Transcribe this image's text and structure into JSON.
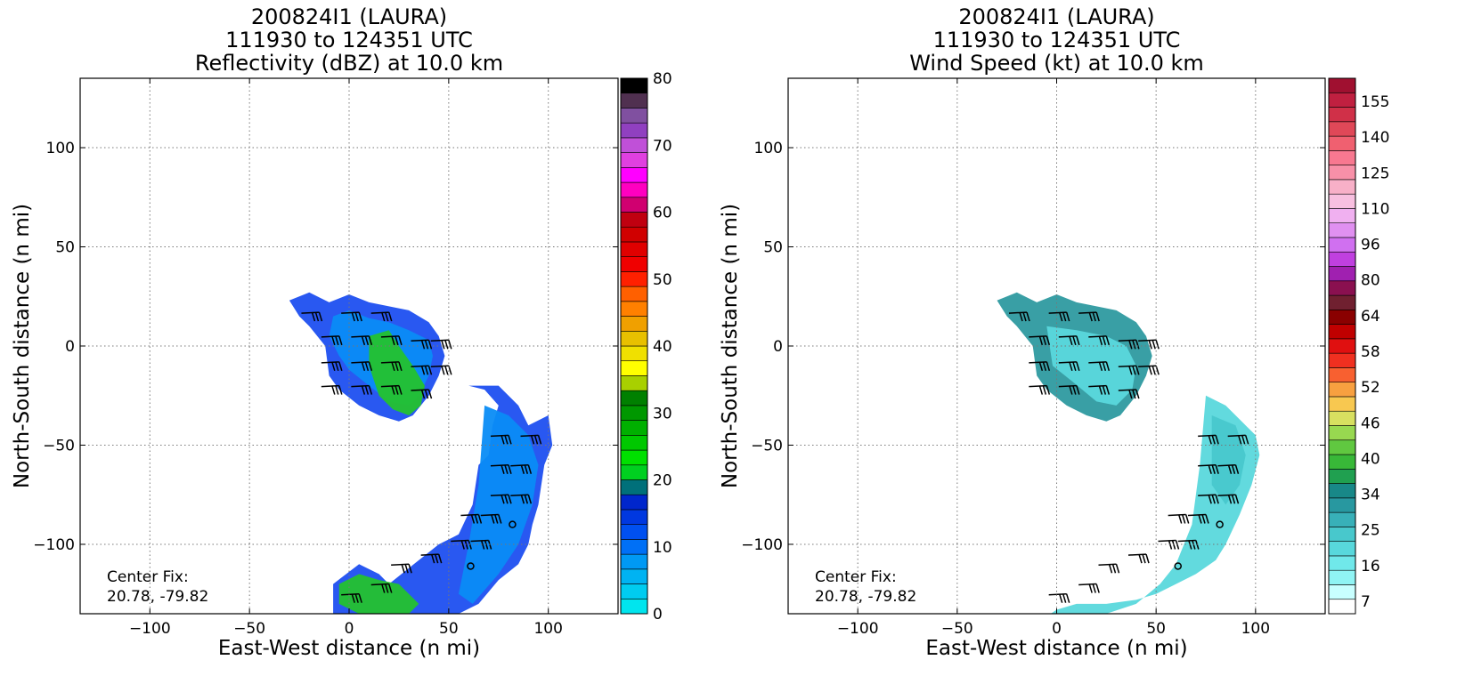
{
  "chart_data": [
    {
      "type": "heatmap",
      "title_lines": [
        "200824I1 (LAURA)",
        "111930 to 124351 UTC",
        "Reflectivity (dBZ) at 10.0 km"
      ],
      "xlabel": "East-West distance (n mi)",
      "ylabel": "North-South distance (n mi)",
      "xlim": [
        -135,
        135
      ],
      "ylim": [
        -135,
        135
      ],
      "xticks": [
        -100,
        -50,
        0,
        50,
        100
      ],
      "xtick_labels": [
        "−100",
        "−50",
        "0",
        "50",
        "100"
      ],
      "yticks": [
        100,
        50,
        0,
        -50,
        -100
      ],
      "ytick_labels": [
        "100",
        "50",
        "0",
        "−50",
        "−100"
      ],
      "grid": true,
      "annotation_lines": [
        "Center Fix:",
        "20.78, -79.82"
      ],
      "colorbar": {
        "ticks": [
          0,
          10,
          20,
          30,
          40,
          50,
          60,
          70,
          80
        ],
        "tick_labels": [
          "0",
          "10",
          "20",
          "30",
          "40",
          "50",
          "60",
          "70",
          "80"
        ],
        "colors": [
          "#00e5ee",
          "#00ccf0",
          "#00b3f2",
          "#0099f4",
          "#0070f6",
          "#0050f0",
          "#0038e0",
          "#0026cc",
          "#00707a",
          "#00d020",
          "#00e000",
          "#00c800",
          "#00b000",
          "#009800",
          "#008000",
          "#a8d000",
          "#ffff00",
          "#f0e000",
          "#e8c000",
          "#f0a000",
          "#ff8000",
          "#ff6000",
          "#ff2000",
          "#f00000",
          "#e00000",
          "#d00000",
          "#c00010",
          "#d00070",
          "#ff00c0",
          "#ff00ff",
          "#e040e0",
          "#c050d8",
          "#9040c0",
          "#8050a0",
          "#503050",
          "#000000"
        ]
      },
      "echo_regions": [
        {
          "x": [
            -30,
            -20,
            -10,
            0,
            10,
            20,
            30,
            40,
            45,
            48,
            45,
            40,
            32,
            25,
            15,
            5,
            -5,
            -10,
            -12,
            -20,
            -25,
            -30
          ],
          "y": [
            23,
            27,
            22,
            26,
            22,
            20,
            18,
            12,
            5,
            -5,
            -15,
            -25,
            -35,
            -38,
            -35,
            -30,
            -22,
            -15,
            0,
            10,
            15,
            23
          ],
          "color": "#1d4ff0"
        },
        {
          "x": [
            -8,
            0,
            10,
            20,
            30,
            40,
            42,
            40,
            35,
            30,
            20,
            10,
            0,
            -5,
            -10,
            -8
          ],
          "y": [
            15,
            18,
            14,
            12,
            8,
            3,
            -5,
            -15,
            -25,
            -30,
            -28,
            -20,
            -12,
            -5,
            5,
            15
          ],
          "color": "#0a8cf5"
        },
        {
          "x": [
            10,
            20,
            25,
            32,
            38,
            36,
            30,
            22,
            15,
            10
          ],
          "y": [
            5,
            8,
            0,
            -10,
            -20,
            -30,
            -35,
            -32,
            -25,
            -10
          ],
          "color": "#24c22e"
        },
        {
          "x": [
            60,
            75,
            85,
            90,
            100,
            102,
            98,
            95,
            92,
            90,
            85,
            75,
            65,
            55,
            40,
            25,
            15,
            0,
            -8,
            -8,
            5,
            15,
            20,
            30,
            45,
            55,
            62,
            65,
            70,
            72,
            75,
            68,
            60
          ],
          "y": [
            -20,
            -20,
            -30,
            -40,
            -35,
            -50,
            -60,
            -80,
            -90,
            -100,
            -110,
            -118,
            -130,
            -135,
            -135,
            -135,
            -135,
            -135,
            -135,
            -120,
            -110,
            -115,
            -120,
            -112,
            -100,
            -95,
            -80,
            -60,
            -55,
            -40,
            -30,
            -22,
            -20
          ],
          "color": "#1d4ff0"
        },
        {
          "x": [
            68,
            80,
            90,
            95,
            92,
            85,
            75,
            62,
            55,
            60,
            65,
            68
          ],
          "y": [
            -30,
            -35,
            -45,
            -60,
            -80,
            -100,
            -115,
            -130,
            -125,
            -100,
            -70,
            -30
          ],
          "color": "#0a8cf5"
        },
        {
          "x": [
            -5,
            5,
            15,
            25,
            35,
            30,
            15,
            5,
            -5
          ],
          "y": [
            -120,
            -115,
            -118,
            -120,
            -130,
            -135,
            -135,
            -135,
            -130
          ],
          "color": "#24c22e"
        }
      ],
      "center_marks": [
        {
          "x": 82,
          "y": -90
        },
        {
          "x": 61,
          "y": -111
        }
      ]
    },
    {
      "type": "heatmap",
      "title_lines": [
        "200824I1 (LAURA)",
        "111930 to 124351 UTC",
        "Wind Speed (kt) at 10.0 km"
      ],
      "xlabel": "East-West distance (n mi)",
      "ylabel": "North-South distance (n mi)",
      "xlim": [
        -135,
        135
      ],
      "ylim": [
        -135,
        135
      ],
      "xticks": [
        -100,
        -50,
        0,
        50,
        100
      ],
      "xtick_labels": [
        "−100",
        "−50",
        "0",
        "50",
        "100"
      ],
      "yticks": [
        100,
        50,
        0,
        -50,
        -100
      ],
      "ytick_labels": [
        "100",
        "50",
        "0",
        "−50",
        "−100"
      ],
      "grid": true,
      "annotation_lines": [
        "Center Fix:",
        "20.78, -79.82"
      ],
      "colorbar": {
        "ticks": [
          7,
          16,
          25,
          34,
          40,
          46,
          52,
          58,
          64,
          80,
          96,
          110,
          125,
          140,
          155
        ],
        "tick_labels": [
          "7",
          "16",
          "25",
          "34",
          "40",
          "46",
          "52",
          "58",
          "64",
          "80",
          "96",
          "110",
          "125",
          "140",
          "155"
        ],
        "colors": [
          "#ffffff",
          "#c8ffff",
          "#90f4f4",
          "#70e8ea",
          "#58d8dc",
          "#48c8cc",
          "#38b0b8",
          "#2898a0",
          "#188888",
          "#20a050",
          "#38b838",
          "#60c840",
          "#98d850",
          "#d8e060",
          "#f8c850",
          "#f8a040",
          "#f86030",
          "#f03020",
          "#e01010",
          "#c00000",
          "#8a0000",
          "#702030",
          "#8a1050",
          "#a020b0",
          "#c040e0",
          "#d070f0",
          "#e090f0",
          "#f0b0f0",
          "#f8c0e0",
          "#f8b0c8",
          "#f890a8",
          "#f87890",
          "#f06070",
          "#e04858",
          "#d03048",
          "#c02040",
          "#a01030"
        ]
      },
      "echo_regions": [
        {
          "x": [
            -30,
            -20,
            -10,
            0,
            10,
            20,
            30,
            40,
            45,
            48,
            45,
            40,
            32,
            25,
            15,
            5,
            -5,
            -10,
            -12,
            -20,
            -25,
            -30
          ],
          "y": [
            23,
            27,
            22,
            26,
            22,
            20,
            18,
            12,
            5,
            -5,
            -15,
            -25,
            -35,
            -38,
            -35,
            -30,
            -22,
            -15,
            0,
            10,
            15,
            23
          ],
          "color": "#2e9aa0"
        },
        {
          "x": [
            -5,
            10,
            25,
            35,
            40,
            38,
            30,
            20,
            8,
            -2,
            -5
          ],
          "y": [
            10,
            8,
            5,
            0,
            -10,
            -22,
            -30,
            -28,
            -18,
            -10,
            10
          ],
          "color": "#5ad8dc"
        },
        {
          "x": [
            75,
            85,
            95,
            100,
            102,
            98,
            92,
            85,
            80,
            70,
            60,
            50,
            40,
            25,
            10,
            0,
            -3,
            10,
            25,
            40,
            52,
            60,
            68,
            72,
            75
          ],
          "y": [
            -25,
            -30,
            -40,
            -45,
            -55,
            -70,
            -85,
            -100,
            -108,
            -115,
            -120,
            -125,
            -128,
            -130,
            -130,
            -133,
            -135,
            -135,
            -135,
            -130,
            -120,
            -110,
            -90,
            -60,
            -25
          ],
          "color": "#5ad8dc"
        },
        {
          "x": [
            78,
            90,
            95,
            92,
            85,
            78,
            78
          ],
          "y": [
            -35,
            -40,
            -55,
            -70,
            -80,
            -70,
            -35
          ],
          "color": "#48c8cc"
        }
      ],
      "center_marks": [
        {
          "x": 82,
          "y": -90
        },
        {
          "x": 61,
          "y": -111
        }
      ]
    }
  ],
  "barbs": [
    {
      "x": -15,
      "y": 17
    },
    {
      "x": 5,
      "y": 17
    },
    {
      "x": 20,
      "y": 17
    },
    {
      "x": -5,
      "y": 5
    },
    {
      "x": 10,
      "y": 5
    },
    {
      "x": 25,
      "y": 5
    },
    {
      "x": 40,
      "y": 3
    },
    {
      "x": 50,
      "y": 3
    },
    {
      "x": -5,
      "y": -8
    },
    {
      "x": 10,
      "y": -8
    },
    {
      "x": 25,
      "y": -8
    },
    {
      "x": 40,
      "y": -10
    },
    {
      "x": 50,
      "y": -10
    },
    {
      "x": -5,
      "y": -20
    },
    {
      "x": 10,
      "y": -20
    },
    {
      "x": 25,
      "y": -20
    },
    {
      "x": 40,
      "y": -22
    },
    {
      "x": 80,
      "y": -45
    },
    {
      "x": 95,
      "y": -45
    },
    {
      "x": 80,
      "y": -60
    },
    {
      "x": 90,
      "y": -60
    },
    {
      "x": 80,
      "y": -75
    },
    {
      "x": 90,
      "y": -75
    },
    {
      "x": 65,
      "y": -85
    },
    {
      "x": 75,
      "y": -85
    },
    {
      "x": 60,
      "y": -98
    },
    {
      "x": 70,
      "y": -98
    },
    {
      "x": 45,
      "y": -105
    },
    {
      "x": 30,
      "y": -110
    },
    {
      "x": 20,
      "y": -120
    },
    {
      "x": 5,
      "y": -125
    }
  ]
}
